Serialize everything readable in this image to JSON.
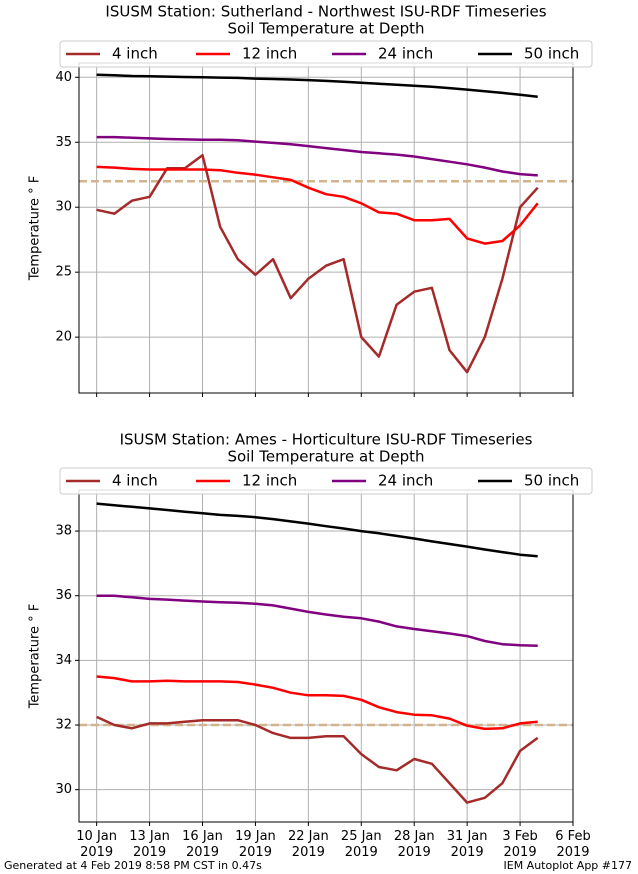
{
  "chart_data": [
    {
      "type": "line",
      "title": "ISUSM Station: Sutherland - Northwest ISU-RDF Timeseries",
      "subtitle": "Soil Temperature at Depth",
      "y_label": "Temperature ° F",
      "x": [
        "2019-01-10",
        "2019-01-11",
        "2019-01-12",
        "2019-01-13",
        "2019-01-14",
        "2019-01-15",
        "2019-01-16",
        "2019-01-17",
        "2019-01-18",
        "2019-01-19",
        "2019-01-20",
        "2019-01-21",
        "2019-01-22",
        "2019-01-23",
        "2019-01-24",
        "2019-01-25",
        "2019-01-26",
        "2019-01-27",
        "2019-01-28",
        "2019-01-29",
        "2019-01-30",
        "2019-01-31",
        "2019-02-01",
        "2019-02-02",
        "2019-02-03",
        "2019-02-04"
      ],
      "series": [
        {
          "name": "4 inch",
          "color": "#a52a2a",
          "values": [
            29.8,
            29.5,
            30.5,
            30.8,
            33.0,
            33.0,
            34.0,
            28.5,
            26.0,
            24.8,
            26.0,
            23.0,
            24.5,
            25.5,
            26.0,
            20.0,
            18.5,
            22.5,
            23.5,
            23.8,
            19.0,
            17.3,
            20.0,
            24.5,
            30.0,
            31.5
          ]
        },
        {
          "name": "12 inch",
          "color": "#ff0000",
          "values": [
            33.1,
            33.05,
            32.95,
            32.9,
            32.9,
            32.9,
            32.9,
            32.85,
            32.65,
            32.5,
            32.3,
            32.1,
            31.5,
            31.0,
            30.8,
            30.3,
            29.6,
            29.5,
            29.0,
            29.0,
            29.1,
            27.6,
            27.2,
            27.4,
            28.6,
            30.3
          ]
        },
        {
          "name": "24 inch",
          "color": "#800080",
          "values": [
            35.4,
            35.4,
            35.35,
            35.3,
            35.25,
            35.22,
            35.2,
            35.2,
            35.15,
            35.05,
            34.95,
            34.85,
            34.7,
            34.55,
            34.4,
            34.25,
            34.15,
            34.05,
            33.9,
            33.7,
            33.5,
            33.3,
            33.05,
            32.75,
            32.55,
            32.45
          ]
        },
        {
          "name": "50 inch",
          "color": "#000000",
          "values": [
            40.2,
            40.15,
            40.1,
            40.08,
            40.05,
            40.02,
            40.0,
            39.98,
            39.95,
            39.9,
            39.87,
            39.83,
            39.78,
            39.72,
            39.65,
            39.58,
            39.5,
            39.43,
            39.35,
            39.27,
            39.17,
            39.05,
            38.93,
            38.8,
            38.65,
            38.5
          ]
        }
      ],
      "hline": 32,
      "hline_color": "#d2b48c",
      "xlim": [
        "2019-01-09",
        "2019-02-06"
      ],
      "xticks": [
        "2019-01-10",
        "2019-01-13",
        "2019-01-16",
        "2019-01-19",
        "2019-01-22",
        "2019-01-25",
        "2019-01-28",
        "2019-01-31",
        "2019-02-03",
        "2019-02-06"
      ],
      "ylim": [
        15.7,
        41.1
      ],
      "yticks": [
        20,
        25,
        30,
        35,
        40
      ],
      "grid": true
    },
    {
      "type": "line",
      "title": "ISUSM Station: Ames - Horticulture ISU-RDF Timeseries",
      "subtitle": "Soil Temperature at Depth",
      "y_label": "Temperature ° F",
      "x": [
        "2019-01-10",
        "2019-01-11",
        "2019-01-12",
        "2019-01-13",
        "2019-01-14",
        "2019-01-15",
        "2019-01-16",
        "2019-01-17",
        "2019-01-18",
        "2019-01-19",
        "2019-01-20",
        "2019-01-21",
        "2019-01-22",
        "2019-01-23",
        "2019-01-24",
        "2019-01-25",
        "2019-01-26",
        "2019-01-27",
        "2019-01-28",
        "2019-01-29",
        "2019-01-30",
        "2019-01-31",
        "2019-02-01",
        "2019-02-02",
        "2019-02-03",
        "2019-02-04"
      ],
      "series": [
        {
          "name": "4 inch",
          "color": "#a52a2a",
          "values": [
            32.25,
            32.0,
            31.9,
            32.05,
            32.05,
            32.1,
            32.15,
            32.15,
            32.15,
            32.0,
            31.75,
            31.6,
            31.6,
            31.65,
            31.65,
            31.1,
            30.7,
            30.6,
            30.95,
            30.8,
            30.2,
            29.6,
            29.75,
            30.2,
            31.2,
            31.6
          ]
        },
        {
          "name": "12 inch",
          "color": "#ff0000",
          "values": [
            33.5,
            33.45,
            33.35,
            33.35,
            33.37,
            33.35,
            33.35,
            33.35,
            33.33,
            33.25,
            33.15,
            33.0,
            32.92,
            32.92,
            32.9,
            32.78,
            32.55,
            32.4,
            32.32,
            32.3,
            32.2,
            31.98,
            31.88,
            31.9,
            32.05,
            32.1
          ]
        },
        {
          "name": "24 inch",
          "color": "#800080",
          "values": [
            36.0,
            36.0,
            35.95,
            35.9,
            35.88,
            35.85,
            35.82,
            35.8,
            35.78,
            35.75,
            35.7,
            35.6,
            35.5,
            35.42,
            35.35,
            35.3,
            35.2,
            35.05,
            34.97,
            34.9,
            34.83,
            34.75,
            34.6,
            34.5,
            34.47,
            34.45
          ]
        },
        {
          "name": "50 inch",
          "color": "#000000",
          "values": [
            38.85,
            38.8,
            38.75,
            38.7,
            38.65,
            38.6,
            38.55,
            38.5,
            38.47,
            38.43,
            38.37,
            38.3,
            38.23,
            38.15,
            38.08,
            38.0,
            37.93,
            37.85,
            37.77,
            37.68,
            37.6,
            37.52,
            37.43,
            37.35,
            37.27,
            37.22
          ]
        }
      ],
      "hline": 32,
      "hline_color": "#d2b48c",
      "xlim": [
        "2019-01-09",
        "2019-02-06"
      ],
      "xticks": [
        {
          "value": "2019-01-10",
          "label": "10 Jan 2019"
        },
        {
          "value": "2019-01-13",
          "label": "13 Jan 2019"
        },
        {
          "value": "2019-01-16",
          "label": "16 Jan 2019"
        },
        {
          "value": "2019-01-19",
          "label": "19 Jan 2019"
        },
        {
          "value": "2019-01-22",
          "label": "22 Jan 2019"
        },
        {
          "value": "2019-01-25",
          "label": "25 Jan 2019"
        },
        {
          "value": "2019-01-28",
          "label": "28 Jan 2019"
        },
        {
          "value": "2019-01-31",
          "label": "31 Jan 2019"
        },
        {
          "value": "2019-02-03",
          "label": "3 Feb 2019"
        },
        {
          "value": "2019-02-06",
          "label": "6 Feb 2019"
        }
      ],
      "ylim": [
        29.0,
        39.27
      ],
      "yticks": [
        30,
        32,
        34,
        36,
        38
      ],
      "grid": true
    }
  ],
  "footer": {
    "left": "Generated at 4 Feb 2019 8:58 PM CST in 0.47s",
    "right": "IEM Autoplot App #177"
  }
}
